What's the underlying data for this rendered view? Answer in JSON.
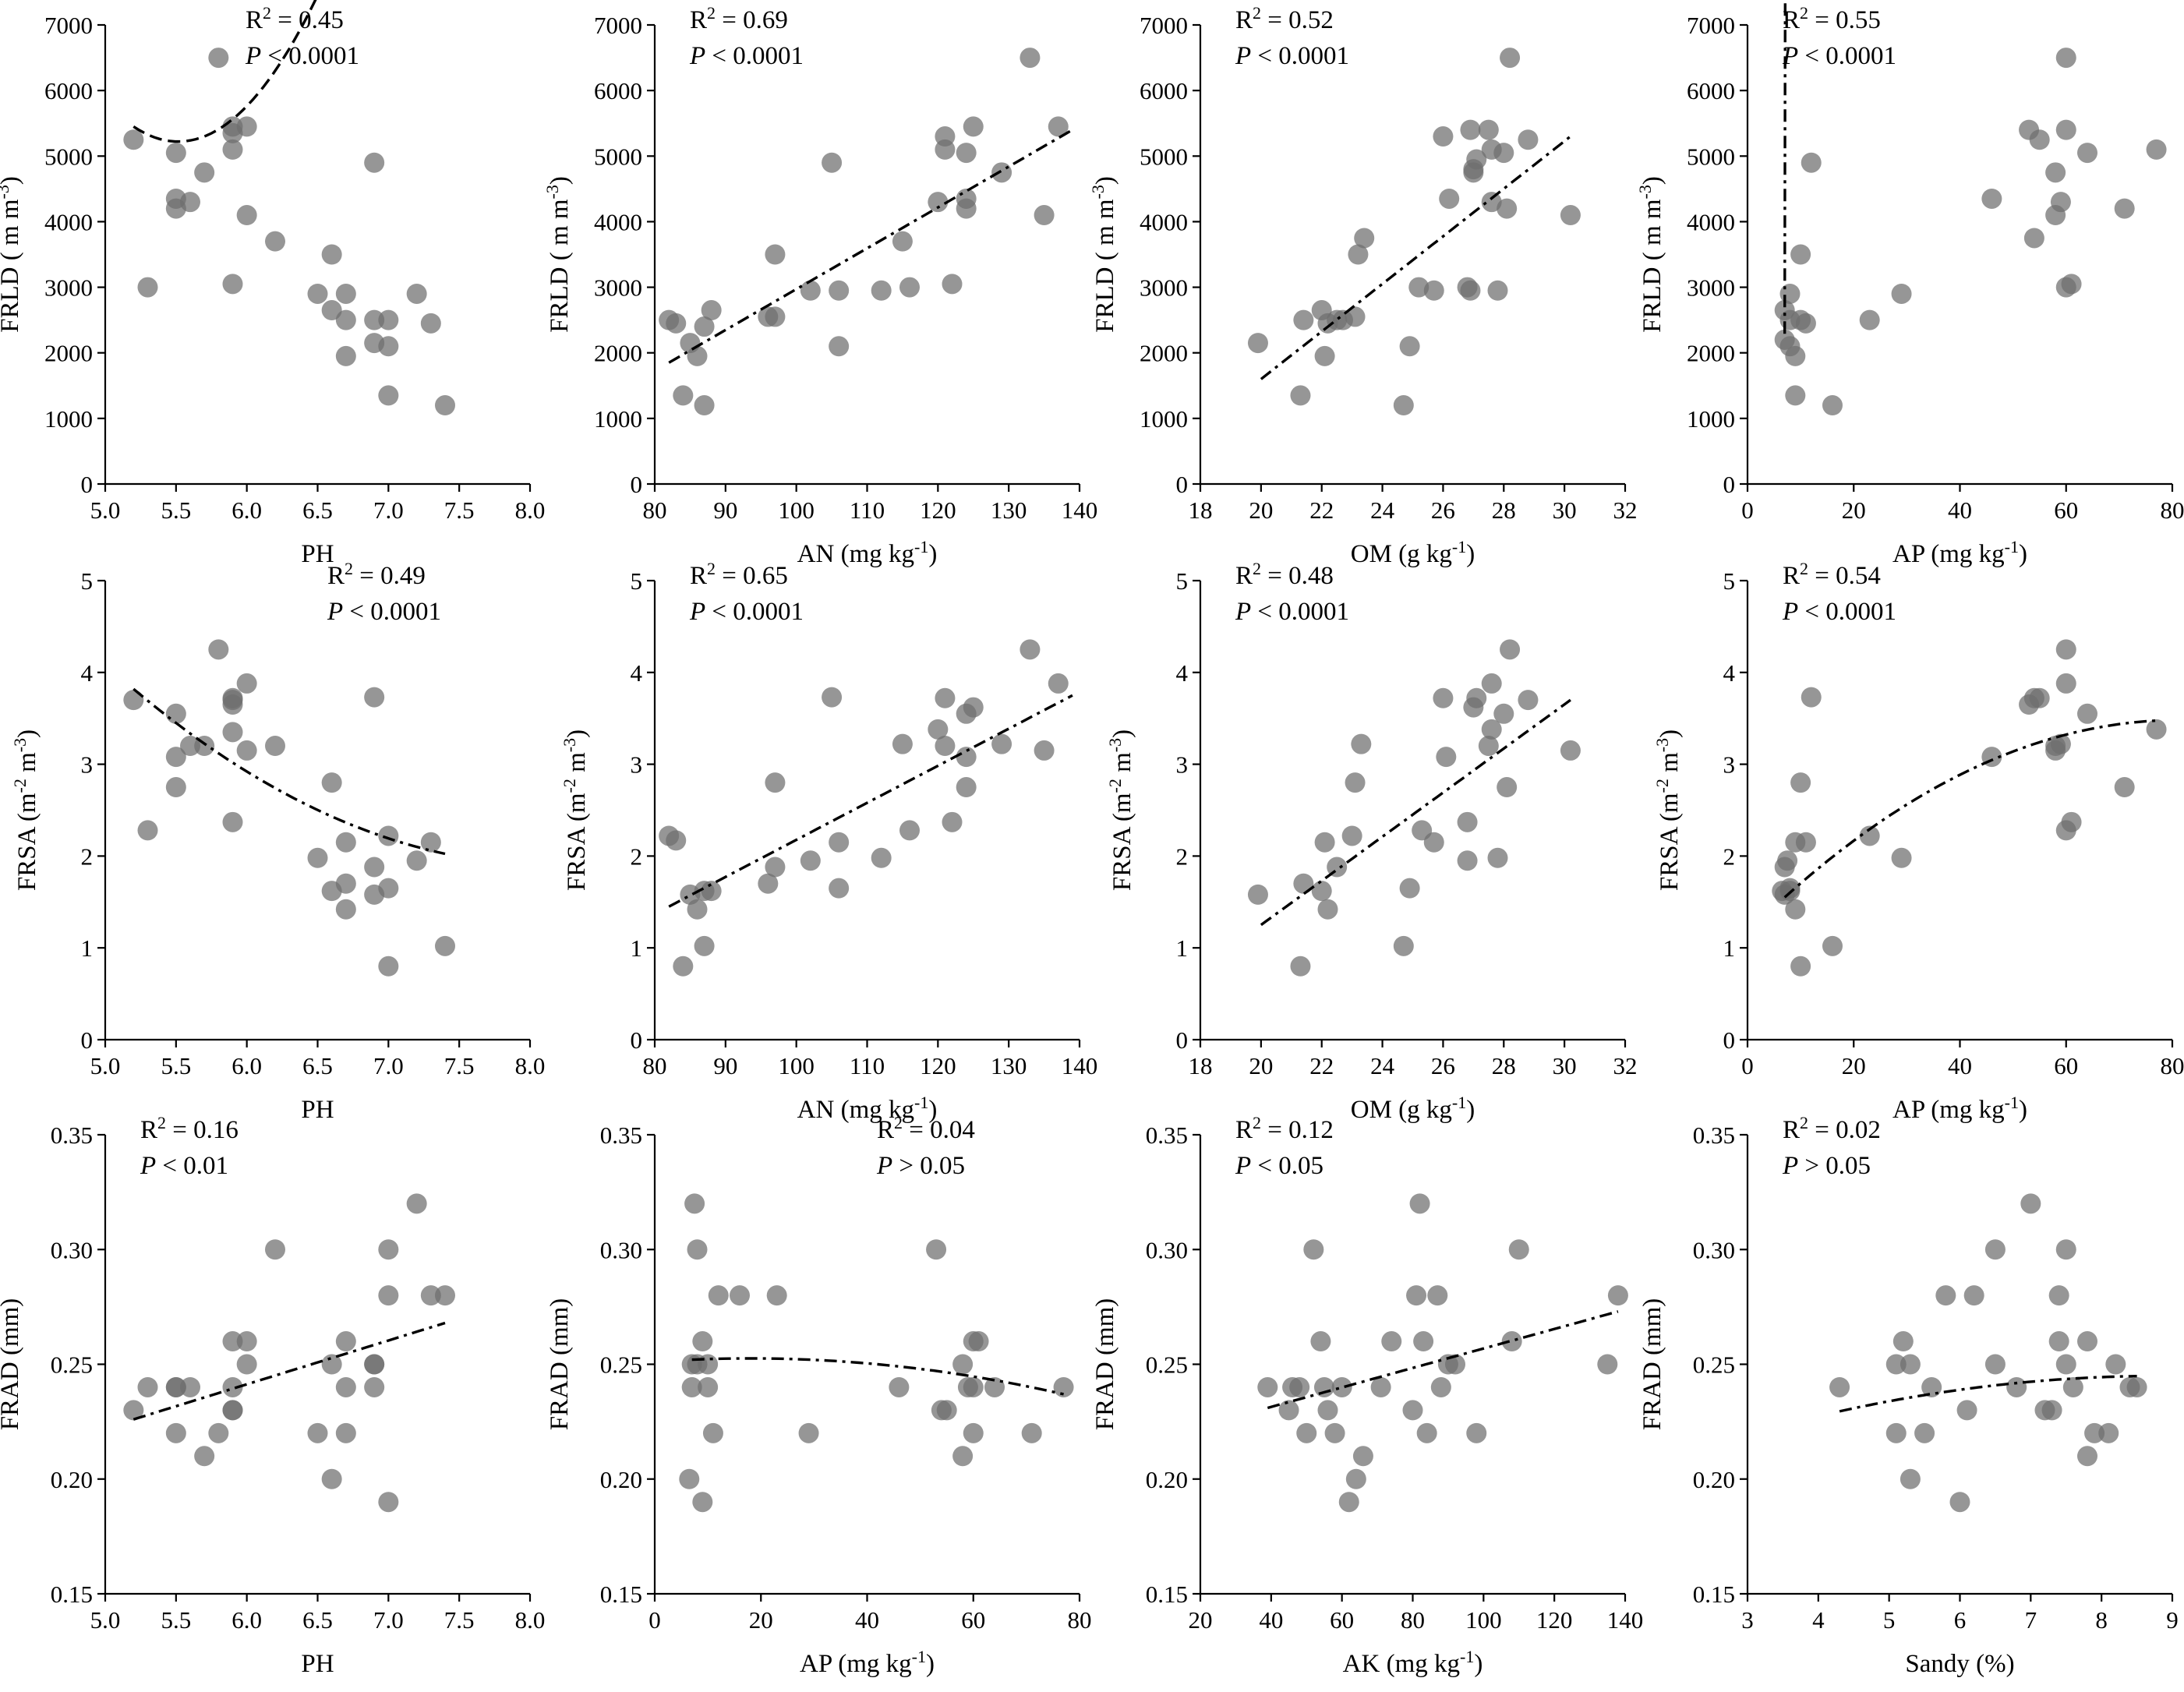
{
  "figure": {
    "description_id": "scatter-matrix-root-traits-vs-soil"
  },
  "chart_data": [
    {
      "type": "scatter",
      "ylabel": "FRLD ( m m-3)",
      "ylabel_parts": [
        "FRLD ( m m",
        "-3",
        ")"
      ],
      "xlabel": "PH",
      "xlabel_parts": [
        "PH"
      ],
      "xlim": [
        5.0,
        8.0
      ],
      "ylim": [
        0,
        7000
      ],
      "xticks": [
        "5.0",
        "5.5",
        "6.0",
        "6.5",
        "7.0",
        "7.5",
        "8.0"
      ],
      "yticks": [
        "0",
        "1000",
        "2000",
        "3000",
        "4000",
        "5000",
        "6000",
        "7000"
      ],
      "r2": "0.45",
      "p": "< 0.0001",
      "stat_pos": "top-center",
      "fit": "dash",
      "x": [
        5.2,
        5.3,
        5.5,
        5.5,
        5.5,
        5.6,
        5.7,
        5.8,
        5.9,
        5.9,
        5.9,
        5.9,
        6.0,
        6.0,
        6.2,
        6.5,
        6.6,
        6.6,
        6.7,
        6.7,
        6.7,
        6.9,
        6.9,
        6.9,
        7.0,
        7.0,
        7.0,
        7.2,
        7.3,
        7.4
      ],
      "y": [
        5250,
        3000,
        5050,
        4350,
        4200,
        4300,
        4750,
        6500,
        5450,
        5350,
        5100,
        3050,
        5450,
        4100,
        3700,
        2900,
        3500,
        2650,
        2900,
        2500,
        1950,
        4900,
        2500,
        2150,
        2500,
        2100,
        1350,
        2900,
        2450,
        1200
      ],
      "fit_x": [
        5.2,
        7.4
      ],
      "fit_coef": [
        5450,
        -1.45,
        2.3
      ]
    },
    {
      "type": "scatter",
      "ylabel": "FRLD ( m m-3)",
      "ylabel_parts": [
        "FRLD ( m m",
        "-3",
        ")"
      ],
      "xlabel": "AN (mg kg-1)",
      "xlabel_parts": [
        "AN (mg kg",
        "-1",
        ")"
      ],
      "xlim": [
        80,
        140
      ],
      "ylim": [
        0,
        7000
      ],
      "xticks": [
        "80",
        "90",
        "100",
        "110",
        "120",
        "130",
        "140"
      ],
      "yticks": [
        "0",
        "1000",
        "2000",
        "3000",
        "4000",
        "5000",
        "6000",
        "7000"
      ],
      "r2": "0.69",
      "p": "< 0.0001",
      "stat_pos": "top-left",
      "fit": "dashdot",
      "x": [
        82,
        83,
        84,
        85,
        86,
        87,
        87,
        88,
        96,
        97,
        97,
        102,
        105,
        106,
        106,
        112,
        115,
        116,
        120,
        121,
        121,
        122,
        124,
        124,
        124,
        125,
        129,
        133,
        135,
        137
      ],
      "y": [
        2500,
        2450,
        1350,
        2150,
        1950,
        1200,
        2400,
        2650,
        2550,
        3500,
        2550,
        2950,
        4900,
        2950,
        2100,
        2950,
        3700,
        3000,
        4300,
        5100,
        5300,
        3050,
        4350,
        5050,
        4200,
        5450,
        4750,
        6500,
        4100,
        5450
      ],
      "fit_x": [
        82,
        139
      ],
      "fit_lin": [
        1850,
        5400
      ]
    },
    {
      "type": "scatter",
      "ylabel": "FRLD ( m m-3)",
      "ylabel_parts": [
        "FRLD ( m m",
        "-3",
        ")"
      ],
      "xlabel": "OM (g kg-1)",
      "xlabel_parts": [
        "OM (g kg",
        "-1",
        ")"
      ],
      "xlim": [
        18,
        32
      ],
      "ylim": [
        0,
        7000
      ],
      "xticks": [
        "18",
        "20",
        "22",
        "24",
        "26",
        "28",
        "30",
        "32"
      ],
      "yticks": [
        "0",
        "1000",
        "2000",
        "3000",
        "4000",
        "5000",
        "6000",
        "7000"
      ],
      "r2": "0.52",
      "p": "< 0.0001",
      "stat_pos": "top-left",
      "fit": "dashdot",
      "x": [
        19.9,
        21.3,
        21.4,
        22.0,
        22.1,
        22.2,
        22.5,
        22.7,
        23.1,
        23.2,
        23.4,
        24.7,
        24.9,
        25.2,
        25.7,
        26.0,
        26.2,
        26.8,
        26.9,
        26.9,
        27.0,
        27.0,
        27.1,
        27.5,
        27.6,
        27.6,
        27.8,
        28.0,
        28.1,
        28.2,
        28.8,
        30.2
      ],
      "y": [
        2150,
        1350,
        2500,
        2650,
        1950,
        2450,
        2500,
        2500,
        2550,
        3500,
        3750,
        1200,
        2100,
        3000,
        2950,
        5300,
        4350,
        3000,
        5400,
        2950,
        4750,
        4800,
        4950,
        5400,
        4300,
        5100,
        2950,
        5050,
        4200,
        6500,
        5250,
        4100
      ],
      "fit_x": [
        20,
        30.2
      ],
      "fit_lin": [
        1600,
        5300
      ]
    },
    {
      "type": "scatter",
      "ylabel": "FRLD ( m m-3)",
      "ylabel_parts": [
        "FRLD ( m m",
        "-3",
        ")"
      ],
      "xlabel": "AP (mg kg-1)",
      "xlabel_parts": [
        "AP (mg kg",
        "-1",
        ")"
      ],
      "xlim": [
        0,
        80
      ],
      "ylim": [
        0,
        7000
      ],
      "xticks": [
        "0",
        "20",
        "40",
        "60",
        "80"
      ],
      "yticks": [
        "0",
        "1000",
        "2000",
        "3000",
        "4000",
        "5000",
        "6000",
        "7000"
      ],
      "r2": "0.55",
      "p": "< 0.0001",
      "stat_pos": "top-left",
      "fit": "dashdot",
      "x": [
        7,
        7,
        8,
        8,
        8,
        9,
        9,
        10,
        10,
        11,
        12,
        16,
        23,
        29,
        46,
        53,
        54,
        55,
        58,
        58,
        59,
        60,
        60,
        60,
        61,
        64,
        71,
        77
      ],
      "y": [
        2650,
        2200,
        2500,
        2900,
        2100,
        1950,
        1350,
        3500,
        2500,
        2450,
        4900,
        1200,
        2500,
        2900,
        4350,
        5400,
        3750,
        5250,
        4750,
        4100,
        4300,
        6500,
        5400,
        3000,
        3050,
        5050,
        4200,
        5100
      ],
      "fit_x": [
        7,
        77
      ],
      "fit_coef": [
        2290,
        55,
        -0.26
      ]
    },
    {
      "type": "scatter",
      "ylabel": "FRSA (m-2 m-3)",
      "ylabel_parts": [
        "FRSA (m",
        "-2",
        " m",
        "-3",
        ")"
      ],
      "xlabel": "PH",
      "xlabel_parts": [
        "PH"
      ],
      "xlim": [
        5.0,
        8.0
      ],
      "ylim": [
        0,
        5
      ],
      "xticks": [
        "5.0",
        "5.5",
        "6.0",
        "6.5",
        "7.0",
        "7.5",
        "8.0"
      ],
      "yticks": [
        "0",
        "1",
        "2",
        "3",
        "4",
        "5"
      ],
      "r2": "0.49",
      "p": "< 0.0001",
      "stat_pos": "top-right",
      "fit": "dashdot",
      "x": [
        5.2,
        5.3,
        5.5,
        5.5,
        5.5,
        5.6,
        5.7,
        5.8,
        5.9,
        5.9,
        5.9,
        5.9,
        5.9,
        6.0,
        6.0,
        6.2,
        6.5,
        6.6,
        6.6,
        6.7,
        6.7,
        6.7,
        6.9,
        6.9,
        6.9,
        7.0,
        7.0,
        7.0,
        7.2,
        7.3,
        7.4
      ],
      "y": [
        3.7,
        2.28,
        3.55,
        3.08,
        2.75,
        3.2,
        3.2,
        4.25,
        3.7,
        3.65,
        3.35,
        3.72,
        2.37,
        3.88,
        3.15,
        3.2,
        1.98,
        2.8,
        1.62,
        2.15,
        1.7,
        1.42,
        3.73,
        1.88,
        1.58,
        2.22,
        1.65,
        0.8,
        1.95,
        2.15,
        1.02
      ],
      "fit_x": [
        5.2,
        7.4
      ],
      "fit_coef": [
        3.82,
        -1.3,
        0.22
      ]
    },
    {
      "type": "scatter",
      "ylabel": "FRSA (m-2 m-3)",
      "ylabel_parts": [
        "FRSA (m",
        "-2",
        " m",
        "-3",
        ")"
      ],
      "xlabel": "AN (mg kg-1)",
      "xlabel_parts": [
        "AN (mg kg",
        "-1",
        ")"
      ],
      "xlim": [
        80,
        140
      ],
      "ylim": [
        0,
        5
      ],
      "xticks": [
        "80",
        "90",
        "100",
        "110",
        "120",
        "130",
        "140"
      ],
      "yticks": [
        "0",
        "1",
        "2",
        "3",
        "4",
        "5"
      ],
      "r2": "0.65",
      "p": "< 0.0001",
      "stat_pos": "top-left",
      "fit": "dashdot",
      "x": [
        82,
        83,
        84,
        85,
        86,
        87,
        87,
        88,
        96,
        97,
        97,
        102,
        105,
        106,
        106,
        112,
        115,
        116,
        120,
        121,
        121,
        122,
        124,
        124,
        124,
        125,
        129,
        133,
        135,
        137
      ],
      "y": [
        2.22,
        2.17,
        0.8,
        1.58,
        1.42,
        1.02,
        1.62,
        1.62,
        1.7,
        2.8,
        1.88,
        1.95,
        3.73,
        2.15,
        1.65,
        1.98,
        3.22,
        2.28,
        3.38,
        3.72,
        3.2,
        2.37,
        3.55,
        3.08,
        2.75,
        3.62,
        3.22,
        4.25,
        3.15,
        3.88
      ],
      "fit_x": [
        82,
        139
      ],
      "fit_lin": [
        1.45,
        3.75
      ]
    },
    {
      "type": "scatter",
      "ylabel": "FRSA (m-2 m-3)",
      "ylabel_parts": [
        "FRSA (m",
        "-2",
        " m",
        "-3",
        ")"
      ],
      "xlabel": "OM (g kg-1)",
      "xlabel_parts": [
        "OM (g kg",
        "-1",
        ")"
      ],
      "xlim": [
        18,
        32
      ],
      "ylim": [
        0,
        5
      ],
      "xticks": [
        "18",
        "20",
        "22",
        "24",
        "26",
        "28",
        "30",
        "32"
      ],
      "yticks": [
        "0",
        "1",
        "2",
        "3",
        "4",
        "5"
      ],
      "r2": "0.48",
      "p": "< 0.0001",
      "stat_pos": "top-left",
      "fit": "dashdot",
      "x": [
        19.9,
        21.3,
        21.4,
        22.0,
        22.1,
        22.2,
        22.5,
        23.0,
        23.1,
        23.3,
        24.7,
        24.9,
        25.3,
        25.7,
        26.0,
        26.1,
        26.8,
        26.8,
        27.0,
        27.1,
        27.5,
        27.6,
        27.6,
        27.8,
        28.0,
        28.1,
        28.2,
        28.8,
        30.2
      ],
      "y": [
        1.58,
        0.8,
        1.7,
        1.62,
        2.15,
        1.42,
        1.88,
        2.22,
        2.8,
        3.22,
        1.02,
        1.65,
        2.28,
        2.15,
        3.72,
        3.08,
        2.37,
        1.95,
        3.62,
        3.72,
        3.2,
        3.38,
        3.88,
        1.98,
        3.55,
        2.75,
        4.25,
        3.7,
        3.15
      ],
      "fit_x": [
        20,
        30.2
      ],
      "fit_lin": [
        1.25,
        3.7
      ]
    },
    {
      "type": "scatter",
      "ylabel": "FRSA (m-2 m-3)",
      "ylabel_parts": [
        "FRSA (m",
        "-2",
        " m",
        "-3",
        ")"
      ],
      "xlabel": "AP (mg kg-1)",
      "xlabel_parts": [
        "AP (mg kg",
        "-1",
        ")"
      ],
      "xlim": [
        0,
        80
      ],
      "ylim": [
        0,
        5
      ],
      "xticks": [
        "0",
        "20",
        "40",
        "60",
        "80"
      ],
      "yticks": [
        "0",
        "1",
        "2",
        "3",
        "4",
        "5"
      ],
      "r2": "0.54",
      "p": "< 0.0001",
      "stat_pos": "top-left",
      "fit": "dashdot",
      "x": [
        6.5,
        7,
        7,
        7.5,
        8,
        8,
        9,
        9,
        10,
        10,
        11,
        12,
        16,
        23,
        29,
        46,
        53,
        54,
        55,
        58,
        58,
        59,
        60,
        60,
        60,
        61,
        64,
        71,
        77
      ],
      "y": [
        1.62,
        1.58,
        1.88,
        1.95,
        1.62,
        1.65,
        2.15,
        1.42,
        0.8,
        2.8,
        2.15,
        3.73,
        1.02,
        2.22,
        1.98,
        3.08,
        3.65,
        3.72,
        3.72,
        3.2,
        3.15,
        3.22,
        4.25,
        3.88,
        2.28,
        2.37,
        3.55,
        2.75,
        3.38
      ],
      "fit_x": [
        7,
        77
      ],
      "fit_coef": [
        1.55,
        0.052,
        -0.00035
      ]
    },
    {
      "type": "scatter",
      "ylabel": "FRAD (mm)",
      "ylabel_parts": [
        "FRAD (mm)"
      ],
      "xlabel": "PH",
      "xlabel_parts": [
        "PH"
      ],
      "xlim": [
        5.0,
        8.0
      ],
      "ylim": [
        0.15,
        0.35
      ],
      "xticks": [
        "5.0",
        "5.5",
        "6.0",
        "6.5",
        "7.0",
        "7.5",
        "8.0"
      ],
      "yticks": [
        "0.15",
        "0.20",
        "0.25",
        "0.30",
        "0.35"
      ],
      "r2": "0.16",
      "p": "< 0.01",
      "stat_pos": "top-left",
      "fit": "dashdot",
      "x": [
        5.2,
        5.3,
        5.5,
        5.5,
        5.5,
        5.6,
        5.7,
        5.8,
        5.9,
        5.9,
        5.9,
        5.9,
        6.0,
        6.0,
        6.2,
        6.5,
        6.6,
        6.6,
        6.7,
        6.7,
        6.7,
        6.9,
        6.9,
        6.9,
        7.0,
        7.0,
        7.0,
        7.2,
        7.3,
        7.4
      ],
      "y": [
        0.23,
        0.24,
        0.24,
        0.24,
        0.22,
        0.24,
        0.21,
        0.22,
        0.26,
        0.24,
        0.23,
        0.23,
        0.26,
        0.25,
        0.3,
        0.22,
        0.25,
        0.2,
        0.26,
        0.24,
        0.22,
        0.25,
        0.25,
        0.24,
        0.3,
        0.28,
        0.19,
        0.32,
        0.28,
        0.28
      ],
      "fit_x": [
        5.2,
        7.4
      ],
      "fit_lin": [
        0.226,
        0.268
      ]
    },
    {
      "type": "scatter",
      "ylabel": "FRAD (mm)",
      "ylabel_parts": [
        "FRAD (mm)"
      ],
      "xlabel": "AP (mg kg-1)",
      "xlabel_parts": [
        "AP (mg kg",
        "-1",
        ")"
      ],
      "xlim": [
        0,
        80
      ],
      "ylim": [
        0.15,
        0.35
      ],
      "xticks": [
        "0",
        "20",
        "40",
        "60",
        "80"
      ],
      "yticks": [
        "0.15",
        "0.20",
        "0.25",
        "0.30",
        "0.35"
      ],
      "r2": "0.04",
      "p": "> 0.05",
      "stat_pos": "top-right",
      "fit": "dashdot",
      "x": [
        6.5,
        7,
        7,
        7.5,
        8,
        8,
        9,
        9,
        10,
        10,
        11,
        12,
        16,
        23,
        29,
        46,
        53,
        54,
        55,
        58,
        58,
        59,
        60,
        60,
        60,
        61,
        64,
        71,
        77
      ],
      "y": [
        0.2,
        0.24,
        0.25,
        0.32,
        0.3,
        0.25,
        0.26,
        0.19,
        0.24,
        0.25,
        0.22,
        0.28,
        0.28,
        0.28,
        0.22,
        0.24,
        0.3,
        0.23,
        0.23,
        0.25,
        0.21,
        0.24,
        0.26,
        0.22,
        0.24,
        0.26,
        0.24,
        0.22,
        0.24
      ],
      "fit_x": [
        7,
        77
      ],
      "fit_coef": [
        0.252,
        0.0001,
        -4.5e-06
      ]
    },
    {
      "type": "scatter",
      "ylabel": "FRAD (mm)",
      "ylabel_parts": [
        "FRAD (mm)"
      ],
      "xlabel": "AK (mg kg-1)",
      "xlabel_parts": [
        "AK (mg kg",
        "-1",
        ")"
      ],
      "xlim": [
        20,
        140
      ],
      "ylim": [
        0.15,
        0.35
      ],
      "xticks": [
        "20",
        "40",
        "60",
        "80",
        "100",
        "120",
        "140"
      ],
      "yticks": [
        "0.15",
        "0.20",
        "0.25",
        "0.30",
        "0.35"
      ],
      "r2": "0.12",
      "p": "< 0.05",
      "stat_pos": "top-left",
      "fit": "dashdot",
      "x": [
        39,
        45,
        46,
        48,
        50,
        52,
        54,
        55,
        56,
        58,
        60,
        62,
        64,
        66,
        71,
        74,
        80,
        81,
        82,
        83,
        84,
        87,
        88,
        90,
        92,
        98,
        108,
        110,
        135,
        138
      ],
      "y": [
        0.24,
        0.23,
        0.24,
        0.24,
        0.22,
        0.3,
        0.26,
        0.24,
        0.23,
        0.22,
        0.24,
        0.19,
        0.2,
        0.21,
        0.24,
        0.26,
        0.23,
        0.28,
        0.32,
        0.26,
        0.22,
        0.28,
        0.24,
        0.25,
        0.25,
        0.22,
        0.26,
        0.3,
        0.25,
        0.28
      ],
      "fit_x": [
        39,
        138
      ],
      "fit_lin": [
        0.231,
        0.273
      ]
    },
    {
      "type": "scatter",
      "ylabel": "FRAD (mm)",
      "ylabel_parts": [
        "FRAD (mm)"
      ],
      "xlabel": "Sandy (%)",
      "xlabel_parts": [
        "Sandy (%)"
      ],
      "xlim": [
        3,
        9
      ],
      "ylim": [
        0.15,
        0.35
      ],
      "xticks": [
        "3",
        "4",
        "5",
        "6",
        "7",
        "8",
        "9"
      ],
      "yticks": [
        "0.15",
        "0.20",
        "0.25",
        "0.30",
        "0.35"
      ],
      "r2": "0.02",
      "p": "> 0.05",
      "stat_pos": "top-left",
      "fit": "dashdot",
      "x": [
        4.3,
        5.1,
        5.1,
        5.2,
        5.3,
        5.3,
        5.5,
        5.6,
        5.8,
        6.0,
        6.1,
        6.2,
        6.5,
        6.5,
        6.8,
        7.0,
        7.2,
        7.3,
        7.4,
        7.4,
        7.5,
        7.5,
        7.6,
        7.8,
        7.8,
        7.9,
        8.1,
        8.2,
        8.4,
        8.5
      ],
      "y": [
        0.24,
        0.25,
        0.22,
        0.26,
        0.2,
        0.25,
        0.22,
        0.24,
        0.28,
        0.19,
        0.23,
        0.28,
        0.3,
        0.25,
        0.24,
        0.32,
        0.23,
        0.23,
        0.28,
        0.26,
        0.3,
        0.25,
        0.24,
        0.26,
        0.21,
        0.22,
        0.22,
        0.25,
        0.24,
        0.24
      ],
      "fit_x": [
        4.3,
        8.5
      ],
      "fit_coef": [
        0.2295,
        0.0068,
        -0.00075
      ]
    }
  ]
}
